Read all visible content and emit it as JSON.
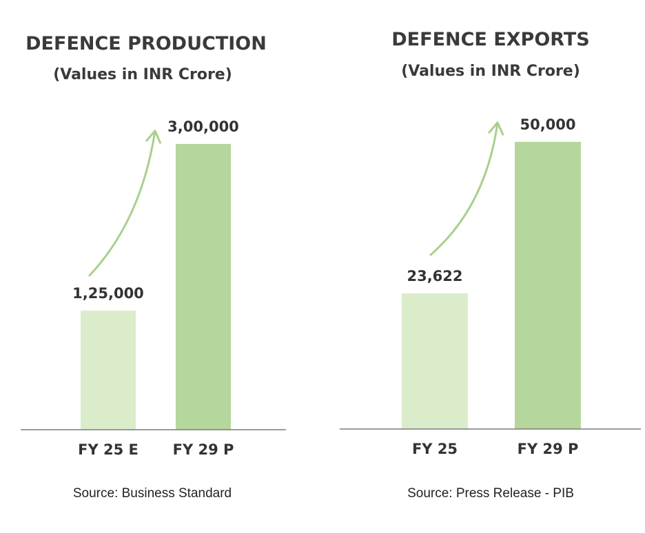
{
  "chart_data": [
    {
      "type": "bar",
      "title": "DEFENCE PRODUCTION",
      "subtitle": "(Values in INR Crore)",
      "categories": [
        "FY 25 E",
        "FY 29 P"
      ],
      "values": [
        125000,
        300000
      ],
      "data_labels": [
        "1,25,000",
        "3,00,000"
      ],
      "bar_colors": [
        "#dbeccb",
        "#b5d69d"
      ],
      "ylim": [
        0,
        300000
      ],
      "grid": false,
      "growth_arrow": true,
      "source": "Source: Business Standard"
    },
    {
      "type": "bar",
      "title": "DEFENCE EXPORTS",
      "subtitle": "(Values in INR Crore)",
      "categories": [
        "FY 25",
        "FY 29 P"
      ],
      "values": [
        23622,
        50000
      ],
      "data_labels": [
        "23,622",
        "50,000"
      ],
      "bar_colors": [
        "#dbeccb",
        "#b5d69d"
      ],
      "ylim": [
        0,
        50000
      ],
      "grid": false,
      "growth_arrow": true,
      "source": "Source: Press Release - PIB"
    }
  ],
  "colors": {
    "axis": "#7a7a7a",
    "arrow": "#a8d08d",
    "text": "#333333"
  }
}
